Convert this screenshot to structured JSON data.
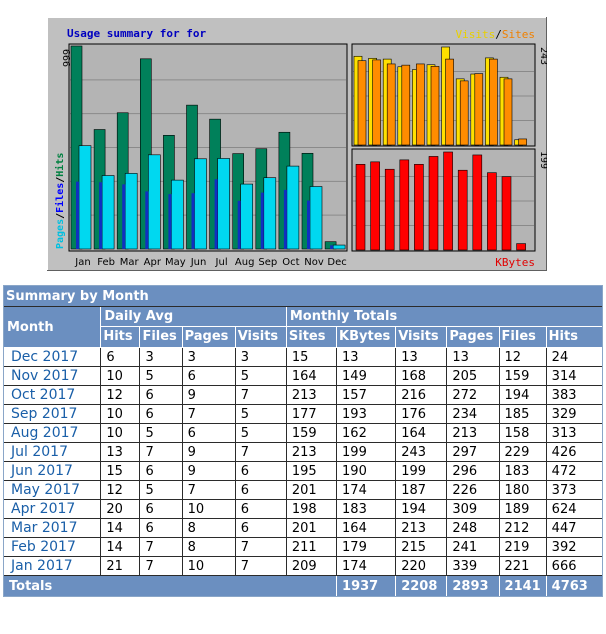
{
  "chart_data": {
    "type": "bar",
    "title": "Usage summary for for",
    "categories": [
      "Jan",
      "Feb",
      "Mar",
      "Apr",
      "May",
      "Jun",
      "Jul",
      "Aug",
      "Sep",
      "Oct",
      "Nov",
      "Dec"
    ],
    "left_panel": {
      "ylabel_parts": [
        {
          "text": "Pages",
          "color": "#00c0e0"
        },
        {
          "text": "/",
          "color": "#000000"
        },
        {
          "text": "Files",
          "color": "#0000ff"
        },
        {
          "text": "/",
          "color": "#000000"
        },
        {
          "text": "Hits",
          "color": "#008040"
        }
      ],
      "ymax": 666,
      "ymax_label": "666",
      "series": [
        {
          "name": "Hits",
          "color": "#00805a",
          "values": [
            666,
            392,
            447,
            624,
            373,
            472,
            426,
            313,
            329,
            383,
            314,
            24
          ]
        },
        {
          "name": "Pages",
          "color": "#00d8f0",
          "values": [
            339,
            241,
            248,
            309,
            226,
            296,
            297,
            213,
            234,
            272,
            205,
            13
          ]
        },
        {
          "name": "Files",
          "color": "#1030c0",
          "values": [
            221,
            219,
            212,
            189,
            180,
            183,
            229,
            158,
            185,
            194,
            159,
            12
          ]
        }
      ]
    },
    "top_right_panel": {
      "legend_parts": [
        {
          "text": "Visits",
          "color": "#e8d000"
        },
        {
          "text": "/",
          "color": "#000000"
        },
        {
          "text": "Sites",
          "color": "#f08000"
        }
      ],
      "ymax": 243,
      "ymax_label": "243",
      "series": [
        {
          "name": "Visits",
          "color": "#ffe000",
          "values": [
            220,
            215,
            213,
            194,
            187,
            199,
            243,
            164,
            176,
            216,
            168,
            13
          ]
        },
        {
          "name": "Sites",
          "color": "#ff8c00",
          "values": [
            209,
            211,
            201,
            198,
            201,
            195,
            213,
            159,
            177,
            213,
            164,
            15
          ]
        }
      ]
    },
    "bottom_right_panel": {
      "legend": "KBytes",
      "legend_color": "#e00000",
      "ymax": 199,
      "ymax_label": "199",
      "series": [
        {
          "name": "KBytes",
          "color": "#ff0000",
          "values": [
            174,
            179,
            164,
            183,
            174,
            190,
            199,
            162,
            193,
            157,
            149,
            13
          ]
        }
      ]
    }
  },
  "table": {
    "title": "Summary by Month",
    "month_header": "Month",
    "daily_avg_header": "Daily Avg",
    "monthly_totals_header": "Monthly Totals",
    "daily_cols": [
      "Hits",
      "Files",
      "Pages",
      "Visits"
    ],
    "monthly_cols": [
      "Sites",
      "KBytes",
      "Visits",
      "Pages",
      "Files",
      "Hits"
    ],
    "rows": [
      {
        "month": "Dec 2017",
        "daily": [
          "6",
          "3",
          "3",
          "3"
        ],
        "monthly": [
          "15",
          "13",
          "13",
          "13",
          "12",
          "24"
        ]
      },
      {
        "month": "Nov 2017",
        "daily": [
          "10",
          "5",
          "6",
          "5"
        ],
        "monthly": [
          "164",
          "149",
          "168",
          "205",
          "159",
          "314"
        ]
      },
      {
        "month": "Oct 2017",
        "daily": [
          "12",
          "6",
          "9",
          "7"
        ],
        "monthly": [
          "213",
          "157",
          "216",
          "272",
          "194",
          "383"
        ]
      },
      {
        "month": "Sep 2017",
        "daily": [
          "10",
          "6",
          "7",
          "5"
        ],
        "monthly": [
          "177",
          "193",
          "176",
          "234",
          "185",
          "329"
        ]
      },
      {
        "month": "Aug 2017",
        "daily": [
          "10",
          "5",
          "6",
          "5"
        ],
        "monthly": [
          "159",
          "162",
          "164",
          "213",
          "158",
          "313"
        ]
      },
      {
        "month": "Jul 2017",
        "daily": [
          "13",
          "7",
          "9",
          "7"
        ],
        "monthly": [
          "213",
          "199",
          "243",
          "297",
          "229",
          "426"
        ]
      },
      {
        "month": "Jun 2017",
        "daily": [
          "15",
          "6",
          "9",
          "6"
        ],
        "monthly": [
          "195",
          "190",
          "199",
          "296",
          "183",
          "472"
        ]
      },
      {
        "month": "May 2017",
        "daily": [
          "12",
          "5",
          "7",
          "6"
        ],
        "monthly": [
          "201",
          "174",
          "187",
          "226",
          "180",
          "373"
        ]
      },
      {
        "month": "Apr 2017",
        "daily": [
          "20",
          "6",
          "10",
          "6"
        ],
        "monthly": [
          "198",
          "183",
          "194",
          "309",
          "189",
          "624"
        ]
      },
      {
        "month": "Mar 2017",
        "daily": [
          "14",
          "6",
          "8",
          "6"
        ],
        "monthly": [
          "201",
          "164",
          "213",
          "248",
          "212",
          "447"
        ]
      },
      {
        "month": "Feb 2017",
        "daily": [
          "14",
          "7",
          "8",
          "7"
        ],
        "monthly": [
          "211",
          "179",
          "215",
          "241",
          "219",
          "392"
        ]
      },
      {
        "month": "Jan 2017",
        "daily": [
          "21",
          "7",
          "10",
          "7"
        ],
        "monthly": [
          "209",
          "174",
          "220",
          "339",
          "221",
          "666"
        ]
      }
    ],
    "totals": {
      "label": "Totals",
      "values": [
        "1937",
        "2208",
        "2893",
        "2141",
        "4763"
      ]
    }
  }
}
